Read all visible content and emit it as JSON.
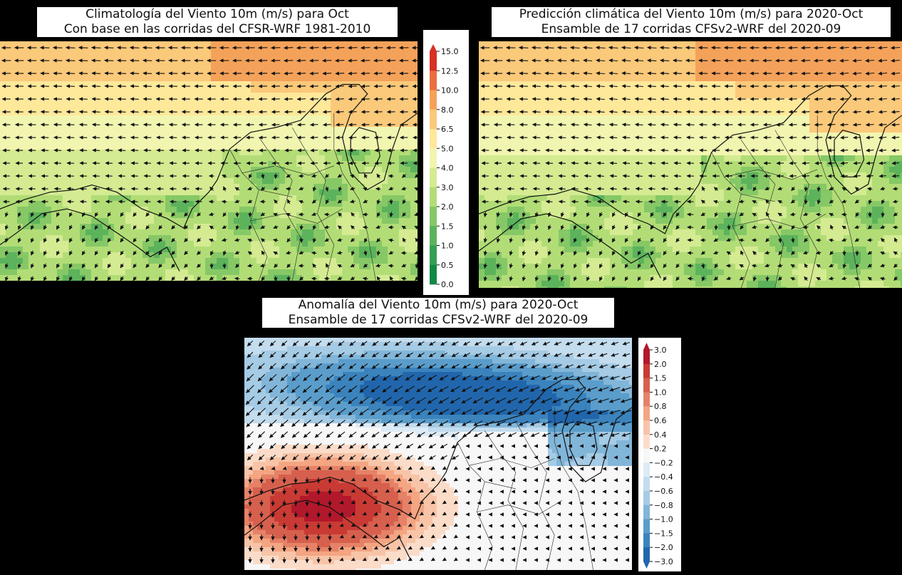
{
  "panels": {
    "climatology": {
      "title_line1": "Climatología del Viento 10m (m/s) para Oct",
      "title_line2": "Con base en las corridas del CFSR-WRF 1981-2010"
    },
    "prediction": {
      "title_line1": "Predicción climática del Viento 10m (m/s) para 2020-Oct",
      "title_line2": "Ensamble de 17 corridas CFSv2-WRF del 2020-09"
    },
    "anomaly": {
      "title_line1": "Anomalía del Viento 10m (m/s) para 2020-Oct",
      "title_line2": "Ensamble de 17 corridas CFSv2-WRF del 2020-09"
    }
  },
  "colorbars": {
    "speed": {
      "labels": [
        "15.0",
        "12.5",
        "10.0",
        "8.0",
        "6.5",
        "5.0",
        "4.0",
        "3.0",
        "2.0",
        "1.5",
        "1.0",
        "0.5",
        "0.0"
      ],
      "colors": [
        "#d73027",
        "#ea6e3f",
        "#f4a25a",
        "#fbc97a",
        "#fee89a",
        "#f2f5b0",
        "#d4eb92",
        "#b2dd76",
        "#86c866",
        "#5cb35c",
        "#34a054",
        "#118a46"
      ]
    },
    "anomaly": {
      "labels": [
        "3.0",
        "2.0",
        "1.5",
        "1.0",
        "0.8",
        "0.6",
        "0.4",
        "0.2",
        "−0.2",
        "−0.4",
        "−0.6",
        "−0.8",
        "−1.0",
        "−1.5",
        "−2.0",
        "−3.0"
      ],
      "colors": [
        "#b2182b",
        "#c93a34",
        "#d6604d",
        "#e58267",
        "#f4a582",
        "#f8c4a8",
        "#fbdcc9",
        "#f7f7f7",
        "#dcebf5",
        "#c3dcee",
        "#a5cbe5",
        "#82b6d9",
        "#5a9dcb",
        "#3b83bd",
        "#2166ac"
      ]
    }
  }
}
